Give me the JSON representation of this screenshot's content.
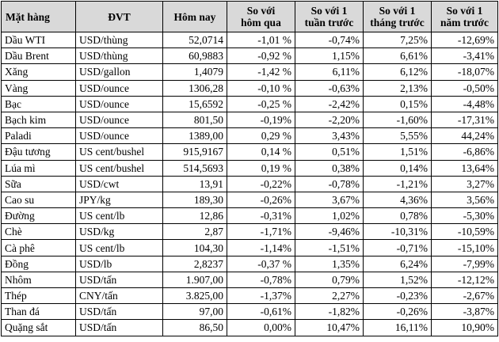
{
  "table": {
    "headers": [
      "Mặt hàng",
      "ĐVT",
      "Hôm nay",
      "So với\nhôm qua",
      "So với 1\ntuần trước",
      "So với 1\ntháng trước",
      "So với 1\nnăm trước"
    ],
    "rows": [
      [
        "Dầu WTI",
        "USD/thùng",
        "52,0714",
        "-1,01 %",
        "-0,74%",
        "7,25%",
        "-12,69%"
      ],
      [
        "Dầu Brent",
        "USD/thùng",
        "60,9883",
        "-0,92 %",
        "1,15%",
        "6,61%",
        "-3,41%"
      ],
      [
        "Xăng",
        "USD/gallon",
        "1,4079",
        "-1,42 %",
        "6,11%",
        "6,12%",
        "-18,07%"
      ],
      [
        "Vàng",
        "USD/ounce",
        "1306,28",
        "-0,10 %",
        "-0,63%",
        "2,13%",
        "-0,50%"
      ],
      [
        "Bạc",
        "USD/ounce",
        "15,6592",
        "-0,25 %",
        "-2,42%",
        "0,15%",
        "-4,48%"
      ],
      [
        "Bạch kim",
        "USD/ounce",
        "801,50",
        "-0,19%",
        "-2,20%",
        "-1,60%",
        "-17,31%"
      ],
      [
        "Paladi",
        "USD/ounce",
        "1389,00",
        "0,29 %",
        "3,43%",
        "5,55%",
        "44,24%"
      ],
      [
        "Đậu tương",
        "US cent/bushel",
        "915,9167",
        "0,14 %",
        "0,51%",
        "1,51%",
        "-6,86%"
      ],
      [
        "Lúa mì",
        "US cent/bushel",
        "514,5693",
        "0,19 %",
        "0,38%",
        "0,14%",
        "13,64%"
      ],
      [
        "Sữa",
        "USD/cwt",
        "13,91",
        "-0,22%",
        "-0,78%",
        "-1,21%",
        "3,27%"
      ],
      [
        "Cao su",
        "JPY/kg",
        "189,30",
        "-0,26%",
        "3,67%",
        "4,36%",
        "3,56%"
      ],
      [
        "Đường",
        "US cent/lb",
        "12,86",
        "-0,31%",
        "1,02%",
        "0,78%",
        "-5,30%"
      ],
      [
        "Chè",
        "USD/kg",
        "2,87",
        "-1,71%",
        "-9,46%",
        "-10,31%",
        "-10,59%"
      ],
      [
        "Cà phê",
        "US cent/lb",
        "104,30",
        "-1,14%",
        "-1,51%",
        "-0,71%",
        "-15,10%"
      ],
      [
        "Đồng",
        "USD/lb",
        "2,8237",
        "-0,37 %",
        "1,35%",
        "6,24%",
        "-7,99%"
      ],
      [
        "Nhôm",
        "USD/tấn",
        "1.907,00",
        "-0,78%",
        "0,79%",
        "1,52%",
        "-12,12%"
      ],
      [
        "Thép",
        "CNY/tấn",
        "3.825,00",
        "-1,37%",
        "2,27%",
        "-0,23%",
        "-2,67%"
      ],
      [
        "Than đá",
        "USD/tấn",
        "97,00",
        "-0,61%",
        "-1,82%",
        "-0,26%",
        "-3,87%"
      ],
      [
        "Quặng sắt",
        "USD/tấn",
        "86,50",
        "0,00%",
        "10,47%",
        "16,11%",
        "10,90%"
      ]
    ]
  }
}
